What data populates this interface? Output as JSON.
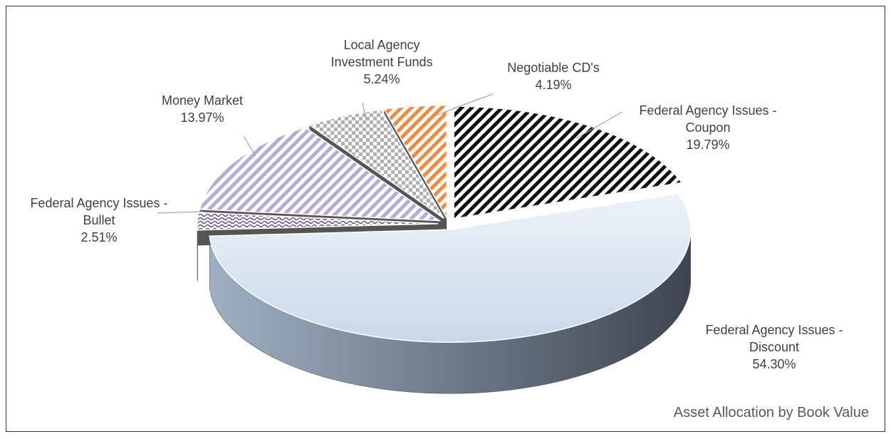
{
  "chart_data": {
    "type": "pie3d",
    "title": "Asset Allocation by Book Value",
    "categories": [
      "Federal Agency Issues - Coupon",
      "Federal Agency Issues - Discount",
      "Federal Agency Issues -Bullet",
      "Money Market",
      "Local Agency Investment Funds",
      "Negotiable CD's"
    ],
    "values": [
      19.79,
      54.3,
      2.51,
      13.97,
      5.24,
      4.19
    ],
    "value_labels": [
      "19.79%",
      "54.30%",
      "2.51%",
      "13.97%",
      "5.24%",
      "4.19%"
    ],
    "colors": [
      "#111111",
      "#c8d8ea",
      "#6a4c8c",
      "#b7aad6",
      "#b0b0b0",
      "#f08a3c"
    ],
    "patterns": [
      "stripe",
      "solid",
      "wave",
      "stripe",
      "check",
      "stripe"
    ]
  }
}
